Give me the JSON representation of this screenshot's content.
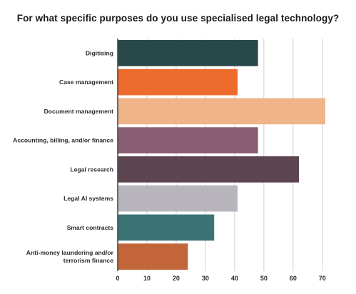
{
  "chart_data": {
    "type": "bar",
    "orientation": "horizontal",
    "title": "For what specific purposes do you use specialised legal technology?",
    "xlabel": "",
    "ylabel": "",
    "categories": [
      [
        "Digitising"
      ],
      [
        "Case management"
      ],
      [
        "Document management"
      ],
      [
        "Accounting, billing, and/or finance"
      ],
      [
        "Legal research"
      ],
      [
        "Legal AI systems"
      ],
      [
        "Smart contracts"
      ],
      [
        "Anti-money laundering and/or",
        "terrorism finance"
      ]
    ],
    "values": [
      48,
      41,
      71,
      48,
      62,
      41,
      33,
      24
    ],
    "colors": [
      "#29484a",
      "#ec6b2d",
      "#efb487",
      "#895e72",
      "#5c4551",
      "#b9b5bd",
      "#3c7376",
      "#c2663a"
    ],
    "xlim": [
      0,
      72
    ],
    "xticks": [
      0,
      10,
      20,
      30,
      40,
      50,
      60,
      70
    ],
    "grid": true,
    "legend": "none"
  }
}
